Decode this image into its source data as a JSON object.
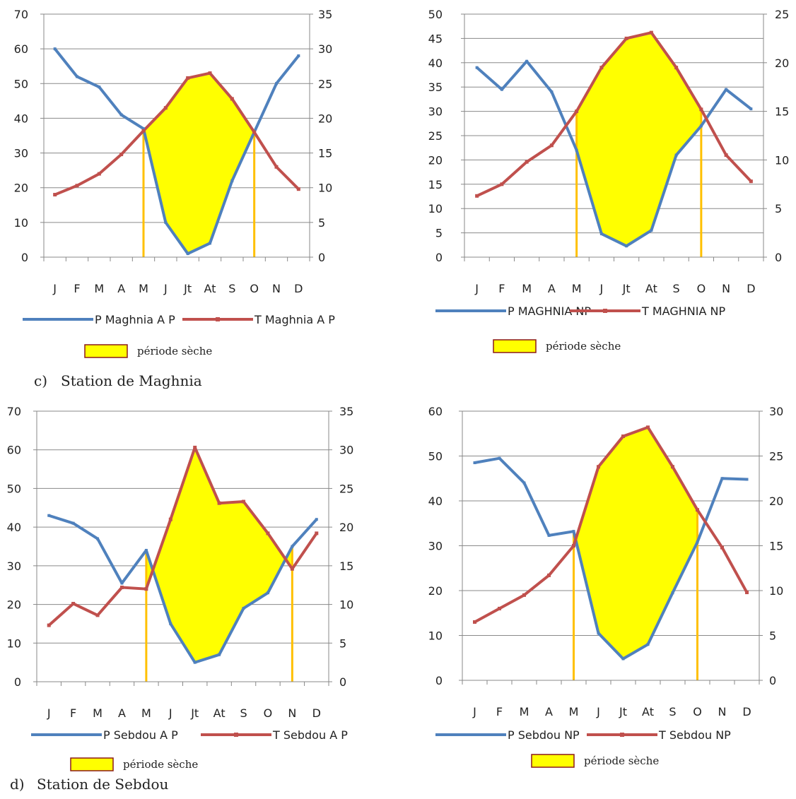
{
  "captions": [
    {
      "label": "c)",
      "text": "Station de Maghnia"
    },
    {
      "label": "d)",
      "text": "Station de Sebdou"
    }
  ],
  "colors": {
    "precip": "#4f81bd",
    "temp": "#c0504d",
    "dry_fill": "#ffff00",
    "dry_border": "#8b1a1a",
    "dry_line": "#ffc000",
    "axis": "#888888"
  },
  "chart_data": [
    {
      "type": "line",
      "categories": [
        "J",
        "F",
        "M",
        "A",
        "M",
        "J",
        "Jt",
        "At",
        "S",
        "O",
        "N",
        "D"
      ],
      "ylim": [
        0,
        70
      ],
      "yticks": [
        0,
        10,
        20,
        30,
        40,
        50,
        60,
        70
      ],
      "y2lim": [
        0,
        35
      ],
      "y2ticks": [
        0,
        5,
        10,
        15,
        20,
        25,
        30,
        35
      ],
      "series": [
        {
          "name": "P Maghnia A P",
          "axis": "left",
          "values": [
            60,
            52,
            49,
            41,
            37,
            10,
            1,
            4,
            22,
            36,
            50,
            58
          ]
        },
        {
          "name": "T Maghnia A P",
          "axis": "right",
          "values": [
            9,
            10.3,
            12,
            14.8,
            18.2,
            21.5,
            25.8,
            26.5,
            22.8,
            18,
            13,
            9.8
          ]
        }
      ],
      "dry_period": {
        "label": "période sèche",
        "start": 4,
        "end": 9
      },
      "legend": "bottom"
    },
    {
      "type": "line",
      "categories": [
        "J",
        "F",
        "M",
        "A",
        "M",
        "J",
        "Jt",
        "At",
        "S",
        "O",
        "N",
        "D"
      ],
      "ylim": [
        0,
        50
      ],
      "yticks": [
        0,
        5,
        10,
        15,
        20,
        25,
        30,
        35,
        40,
        45,
        50
      ],
      "y2lim": [
        0,
        25
      ],
      "y2ticks": [
        0,
        5,
        10,
        15,
        20,
        25
      ],
      "series": [
        {
          "name": "P MAGHNIA  NP",
          "axis": "left",
          "values": [
            39,
            34.5,
            40.3,
            34,
            22,
            4.8,
            2.3,
            5.5,
            21,
            27,
            34.5,
            30.5
          ]
        },
        {
          "name": "T MAGHNIA  NP",
          "axis": "right",
          "values": [
            6.3,
            7.5,
            9.8,
            11.5,
            15,
            19.5,
            22.5,
            23.1,
            19.5,
            15.2,
            10.5,
            7.8
          ]
        }
      ],
      "dry_period": {
        "label": "période sèche",
        "start": 4,
        "end": 9
      },
      "legend": "bottom"
    },
    {
      "type": "line",
      "categories": [
        "J",
        "F",
        "M",
        "A",
        "M",
        "J",
        "Jt",
        "At",
        "S",
        "O",
        "N",
        "D"
      ],
      "ylim": [
        0,
        70
      ],
      "yticks": [
        0,
        10,
        20,
        30,
        40,
        50,
        60,
        70
      ],
      "y2lim": [
        0,
        35
      ],
      "y2ticks": [
        0,
        5,
        10,
        15,
        20,
        25,
        30,
        35
      ],
      "series": [
        {
          "name": "P Sebdou A P",
          "axis": "left",
          "values": [
            43,
            41,
            37,
            25.5,
            34,
            15,
            5,
            7,
            19,
            23,
            35,
            42
          ]
        },
        {
          "name": "T Sebdou A P",
          "axis": "right",
          "values": [
            7.3,
            10.1,
            8.6,
            12.2,
            12,
            21,
            30.3,
            23.1,
            23.3,
            19.2,
            14.6,
            19.2
          ]
        }
      ],
      "dry_period": {
        "label": "période sèche",
        "start": 4,
        "end": 10
      },
      "legend": "bottom"
    },
    {
      "type": "line",
      "categories": [
        "J",
        "F",
        "M",
        "A",
        "M",
        "J",
        "Jt",
        "At",
        "S",
        "O",
        "N",
        "D"
      ],
      "ylim": [
        0,
        60
      ],
      "yticks": [
        0,
        10,
        20,
        30,
        40,
        50,
        60
      ],
      "y2lim": [
        0,
        30
      ],
      "y2ticks": [
        0,
        5,
        10,
        15,
        20,
        25,
        30
      ],
      "series": [
        {
          "name": "P Sebdou NP",
          "axis": "left",
          "values": [
            48.5,
            49.5,
            44,
            32.3,
            33.2,
            10.5,
            4.8,
            8,
            19.5,
            30.8,
            45,
            44.8
          ]
        },
        {
          "name": "T Sebdou NP",
          "axis": "right",
          "values": [
            6.5,
            8,
            9.5,
            11.7,
            15,
            23.8,
            27.2,
            28.2,
            23.8,
            19,
            14.8,
            9.8
          ]
        }
      ],
      "dry_period": {
        "label": "période sèche",
        "start": 4,
        "end": 9
      },
      "legend": "bottom"
    }
  ]
}
